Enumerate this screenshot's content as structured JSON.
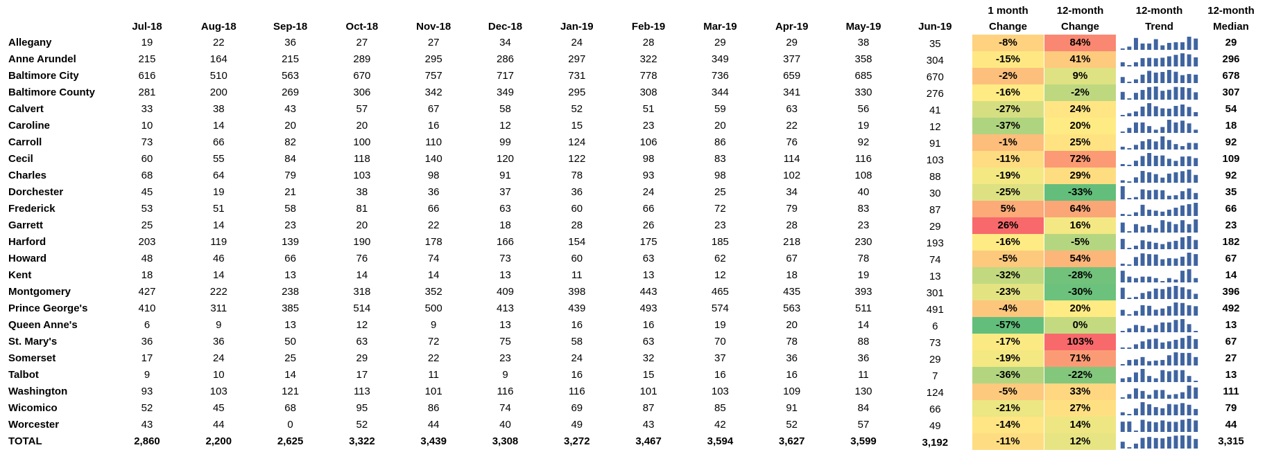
{
  "table": {
    "columns": [
      "Jul-18",
      "Aug-18",
      "Sep-18",
      "Oct-18",
      "Nov-18",
      "Dec-18",
      "Jan-19",
      "Feb-19",
      "Mar-19",
      "Apr-19",
      "May-19",
      "Jun-19"
    ],
    "change_1m_header": [
      "1 month",
      "Change"
    ],
    "change_12m_header": [
      "12-month",
      "Change"
    ],
    "trend_header": [
      "12-month",
      "Trend"
    ],
    "median_header": [
      "12-month",
      "Median"
    ],
    "rows": [
      {
        "name": "Allegany",
        "months": [
          19,
          22,
          36,
          27,
          27,
          34,
          24,
          28,
          29,
          29,
          38,
          35
        ],
        "change_1m": "-8%",
        "change_12m": "84%",
        "median": 29
      },
      {
        "name": "Anne Arundel",
        "months": [
          215,
          164,
          215,
          289,
          295,
          286,
          297,
          322,
          349,
          377,
          358,
          304
        ],
        "change_1m": "-15%",
        "change_12m": "41%",
        "median": 296
      },
      {
        "name": "Baltimore City",
        "months": [
          616,
          510,
          563,
          670,
          757,
          717,
          731,
          778,
          736,
          659,
          685,
          670
        ],
        "change_1m": "-2%",
        "change_12m": "9%",
        "median": 678
      },
      {
        "name": "Baltimore County",
        "months": [
          281,
          200,
          269,
          306,
          342,
          349,
          295,
          308,
          344,
          341,
          330,
          276
        ],
        "change_1m": "-16%",
        "change_12m": "-2%",
        "median": 307
      },
      {
        "name": "Calvert",
        "months": [
          33,
          38,
          43,
          57,
          67,
          58,
          52,
          51,
          59,
          63,
          56,
          41
        ],
        "change_1m": "-27%",
        "change_12m": "24%",
        "median": 54
      },
      {
        "name": "Caroline",
        "months": [
          10,
          14,
          20,
          20,
          16,
          12,
          15,
          23,
          20,
          22,
          19,
          12
        ],
        "change_1m": "-37%",
        "change_12m": "20%",
        "median": 18
      },
      {
        "name": "Carroll",
        "months": [
          73,
          66,
          82,
          100,
          110,
          99,
          124,
          106,
          86,
          76,
          92,
          91
        ],
        "change_1m": "-1%",
        "change_12m": "25%",
        "median": 92
      },
      {
        "name": "Cecil",
        "months": [
          60,
          55,
          84,
          118,
          140,
          120,
          122,
          98,
          83,
          114,
          116,
          103
        ],
        "change_1m": "-11%",
        "change_12m": "72%",
        "median": 109
      },
      {
        "name": "Charles",
        "months": [
          68,
          64,
          79,
          103,
          98,
          91,
          78,
          93,
          98,
          102,
          108,
          88
        ],
        "change_1m": "-19%",
        "change_12m": "29%",
        "median": 92
      },
      {
        "name": "Dorchester",
        "months": [
          45,
          19,
          21,
          38,
          36,
          37,
          36,
          24,
          25,
          34,
          40,
          30
        ],
        "change_1m": "-25%",
        "change_12m": "-33%",
        "median": 35
      },
      {
        "name": "Frederick",
        "months": [
          53,
          51,
          58,
          81,
          66,
          63,
          60,
          66,
          72,
          79,
          83,
          87
        ],
        "change_1m": "5%",
        "change_12m": "64%",
        "median": 66
      },
      {
        "name": "Garrett",
        "months": [
          25,
          14,
          23,
          20,
          22,
          18,
          28,
          26,
          23,
          28,
          23,
          29
        ],
        "change_1m": "26%",
        "change_12m": "16%",
        "median": 23
      },
      {
        "name": "Harford",
        "months": [
          203,
          119,
          139,
          190,
          178,
          166,
          154,
          175,
          185,
          218,
          230,
          193
        ],
        "change_1m": "-16%",
        "change_12m": "-5%",
        "median": 182
      },
      {
        "name": "Howard",
        "months": [
          48,
          46,
          66,
          76,
          74,
          73,
          60,
          63,
          62,
          67,
          78,
          74
        ],
        "change_1m": "-5%",
        "change_12m": "54%",
        "median": 67
      },
      {
        "name": "Kent",
        "months": [
          18,
          14,
          13,
          14,
          14,
          13,
          11,
          13,
          12,
          18,
          19,
          13
        ],
        "change_1m": "-32%",
        "change_12m": "-28%",
        "median": 14
      },
      {
        "name": "Montgomery",
        "months": [
          427,
          222,
          238,
          318,
          352,
          409,
          398,
          443,
          465,
          435,
          393,
          301
        ],
        "change_1m": "-23%",
        "change_12m": "-30%",
        "median": 396
      },
      {
        "name": "Prince George's",
        "months": [
          410,
          311,
          385,
          514,
          500,
          413,
          439,
          493,
          574,
          563,
          511,
          491
        ],
        "change_1m": "-4%",
        "change_12m": "20%",
        "median": 492
      },
      {
        "name": "Queen Anne's",
        "months": [
          6,
          9,
          13,
          12,
          9,
          13,
          16,
          16,
          19,
          20,
          14,
          6
        ],
        "change_1m": "-57%",
        "change_12m": "0%",
        "median": 13
      },
      {
        "name": "St. Mary's",
        "months": [
          36,
          36,
          50,
          63,
          72,
          75,
          58,
          63,
          70,
          78,
          88,
          73
        ],
        "change_1m": "-17%",
        "change_12m": "103%",
        "median": 67
      },
      {
        "name": "Somerset",
        "months": [
          17,
          24,
          25,
          29,
          22,
          23,
          24,
          32,
          37,
          36,
          36,
          29
        ],
        "change_1m": "-19%",
        "change_12m": "71%",
        "median": 27
      },
      {
        "name": "Talbot",
        "months": [
          9,
          10,
          14,
          17,
          11,
          9,
          16,
          15,
          16,
          16,
          11,
          7
        ],
        "change_1m": "-36%",
        "change_12m": "-22%",
        "median": 13
      },
      {
        "name": "Washington",
        "months": [
          93,
          103,
          121,
          113,
          101,
          116,
          116,
          101,
          103,
          109,
          130,
          124
        ],
        "change_1m": "-5%",
        "change_12m": "33%",
        "median": 111
      },
      {
        "name": "Wicomico",
        "months": [
          52,
          45,
          68,
          95,
          86,
          74,
          69,
          87,
          85,
          91,
          84,
          66
        ],
        "change_1m": "-21%",
        "change_12m": "27%",
        "median": 79
      },
      {
        "name": "Worcester",
        "months": [
          43,
          44,
          0,
          52,
          44,
          40,
          49,
          43,
          42,
          52,
          57,
          49
        ],
        "change_1m": "-14%",
        "change_12m": "14%",
        "median": 44
      },
      {
        "name": "TOTAL",
        "months": [
          "2,860",
          "2,200",
          "2,625",
          "3,322",
          "3,439",
          "3,308",
          "3,272",
          "3,467",
          "3,594",
          "3,627",
          "3,599",
          "3,192"
        ],
        "change_1m": "-11%",
        "change_12m": "12%",
        "median": "3,315"
      }
    ]
  }
}
